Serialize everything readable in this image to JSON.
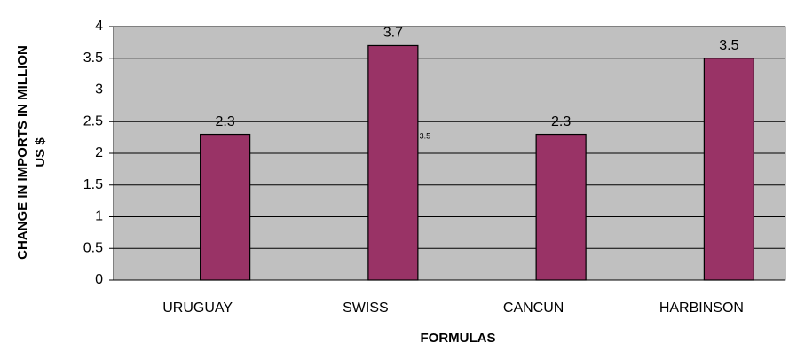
{
  "chart_data": {
    "type": "bar",
    "ylabel": [
      "CHANGE IN IMPORTS IN MILLION",
      "US $"
    ],
    "xlabel": "FORMULAS",
    "categories": [
      "URUGUAY",
      "SWISS",
      "CANCUN",
      "HARBINSON"
    ],
    "values": [
      2.3,
      3.7,
      2.3,
      3.5
    ],
    "color": "#993366",
    "plot_background": "#c0c0c0",
    "ylim": [
      0,
      4
    ],
    "yticks": [
      0,
      0.5,
      1,
      1.5,
      2,
      2.5,
      3,
      3.5,
      4
    ],
    "grid": true,
    "annotation": "3.5"
  }
}
